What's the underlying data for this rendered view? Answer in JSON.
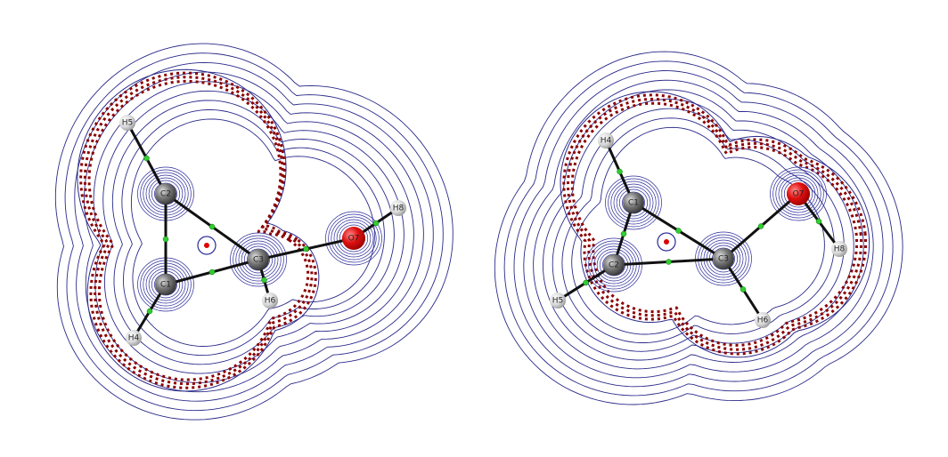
{
  "panels": [
    {
      "atom_labels": [
        "H5",
        "C2",
        "C1",
        "H4",
        "C3",
        "H6",
        "O7",
        "H8"
      ]
    },
    {
      "atom_labels": [
        "H4",
        "C1",
        "C2",
        "H5",
        "C3",
        "H6",
        "O7",
        "H8"
      ]
    }
  ]
}
